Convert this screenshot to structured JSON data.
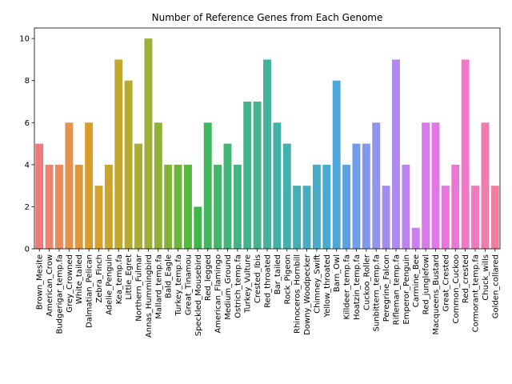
{
  "chart_data": {
    "type": "bar",
    "title": "Number of Reference Genes from Each Genome",
    "xlabel": "",
    "ylabel": "",
    "ylim": [
      0,
      10.5
    ],
    "yticks": [
      0,
      2,
      4,
      6,
      8,
      10
    ],
    "grid": false,
    "categories": [
      "Brown_Mesite",
      "American_Crow",
      "Budgerigar_temp.fa",
      "Grey_Crowned",
      "White_tailed",
      "Dalmatian_Pelican",
      "Zebra_Finch",
      "Adelie_Penguin",
      "Kea_temp.fa",
      "Little_Egret",
      "Northern_Fulmar",
      "Annas_Hummingbird",
      "Mallard_temp.fa",
      "Bald_Eagle",
      "Turkey_temp.fa",
      "Great_Tinamou",
      "Speckled_Mousebird",
      "Red_legged",
      "American_Flamingo",
      "Medium_Ground",
      "Ostrich_temp.fa",
      "Turkey_Vulture",
      "Crested_Ibis",
      "Red_throated",
      "Bar_tailed",
      "Rock_Pigeon",
      "Rhinoceros_Hornbill",
      "Downy_Woodpecker",
      "Chimney_Swift",
      "Yellow_throated",
      "Barn_Owl",
      "Killdeer_temp.fa",
      "Hoatzin_temp.fa",
      "Cuckoo_Roller",
      "Sunbittern_temp.fa",
      "Peregrine_Falcon",
      "Rifleman_temp.fa",
      "Emperor_Penguin",
      "Carmine_Bee",
      "Red_junglefowl",
      "Macqueens_Bustard",
      "Great_Crested",
      "Common_Cuckoo",
      "Red_crested",
      "Cormorant_temp.fa",
      "Chuck_wills",
      "Golden_collared"
    ],
    "values": [
      5,
      4,
      4,
      6,
      4,
      6,
      3,
      4,
      9,
      8,
      5,
      10,
      6,
      4,
      4,
      4,
      2,
      6,
      4,
      5,
      4,
      7,
      7,
      9,
      6,
      5,
      3,
      3,
      4,
      4,
      8,
      4,
      5,
      5,
      6,
      3,
      9,
      4,
      1,
      6,
      6,
      3,
      4,
      9,
      3,
      6,
      3
    ],
    "colors": [
      "#f0797a",
      "#ec8470",
      "#e88c60",
      "#e4924f",
      "#e0973c",
      "#db9c2c",
      "#d5a228",
      "#cca52c",
      "#c2a82f",
      "#b6ab31",
      "#aaad33",
      "#9daf35",
      "#90b136",
      "#80b438",
      "#6db63b",
      "#56b83e",
      "#3eb947",
      "#3fb85c",
      "#40b76a",
      "#41b677",
      "#42b582",
      "#42b48b",
      "#43b394",
      "#43b29d",
      "#44b1a5",
      "#44b0ad",
      "#45afb5",
      "#46adbd",
      "#47acc5",
      "#49aacf",
      "#4ea8d9",
      "#5aa3e3",
      "#6e9ee9",
      "#8199ec",
      "#9293ee",
      "#a18ef0",
      "#b088f1",
      "#bf82f1",
      "#cc7df0",
      "#d87aec",
      "#e176e6",
      "#e874de",
      "#ec76d4",
      "#ef78c8",
      "#f07abc",
      "#f07cae",
      "#f07e9f"
    ]
  }
}
